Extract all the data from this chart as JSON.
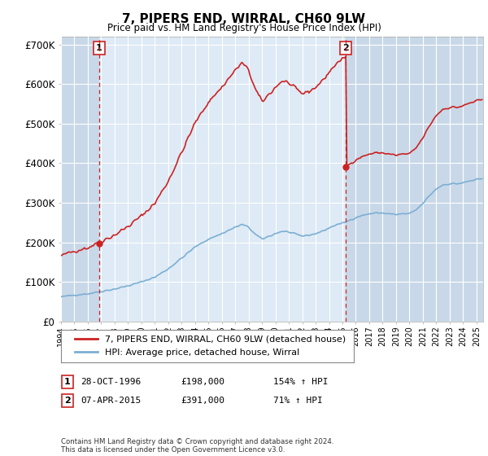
{
  "title": "7, PIPERS END, WIRRAL, CH60 9LW",
  "subtitle": "Price paid vs. HM Land Registry's House Price Index (HPI)",
  "ylim": [
    0,
    720000
  ],
  "xlim_start": 1994.0,
  "xlim_end": 2025.5,
  "yticks": [
    0,
    100000,
    200000,
    300000,
    400000,
    500000,
    600000,
    700000
  ],
  "ytick_labels": [
    "£0",
    "£100K",
    "£200K",
    "£300K",
    "£400K",
    "£500K",
    "£600K",
    "£700K"
  ],
  "hpi_color": "#7bafd4",
  "price_color": "#cc2222",
  "plot_bg_color": "#deeaf5",
  "hatch_bg_color": "#c8d8e8",
  "grid_color": "#ffffff",
  "marker1_year": 1996.83,
  "marker1_price": 198000,
  "marker2_year": 2015.27,
  "marker2_price": 391000,
  "legend_label_price": "7, PIPERS END, WIRRAL, CH60 9LW (detached house)",
  "legend_label_hpi": "HPI: Average price, detached house, Wirral",
  "marker1_date": "28-OCT-1996",
  "marker1_amount": "£198,000",
  "marker1_hpi": "154% ↑ HPI",
  "marker2_date": "07-APR-2015",
  "marker2_amount": "£391,000",
  "marker2_hpi": "71% ↑ HPI",
  "footer": "Contains HM Land Registry data © Crown copyright and database right 2024.\nThis data is licensed under the Open Government Licence v3.0."
}
